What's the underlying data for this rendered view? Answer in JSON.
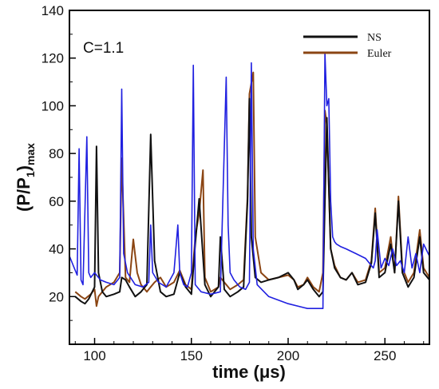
{
  "chart_data": {
    "type": "line",
    "xlabel": "time (μs)",
    "ylabel_main": "(P/P",
    "ylabel_sub1": "1",
    "ylabel_close": ")",
    "ylabel_sub2": "max",
    "annotation": "C=1.1",
    "xlim": [
      87,
      273
    ],
    "ylim": [
      0,
      140
    ],
    "xticks": [
      100,
      150,
      200,
      250
    ],
    "yticks": [
      20,
      40,
      60,
      80,
      100,
      120,
      140
    ],
    "grid": false,
    "legend_position": "top-right",
    "series": [
      {
        "name": "NS",
        "color": "#111111",
        "x": [
          90,
          93,
          95,
          97,
          100,
          101,
          102,
          104,
          106,
          110,
          113,
          114,
          116,
          118,
          121,
          124,
          127,
          129,
          131,
          134,
          137,
          141,
          144,
          147,
          150,
          152,
          154,
          157,
          160,
          164,
          165,
          167,
          170,
          174,
          177,
          179,
          180,
          181,
          183,
          186,
          190,
          195,
          200,
          203,
          205,
          208,
          210,
          213,
          216,
          218,
          219,
          220,
          222,
          224,
          227,
          230,
          233,
          236,
          240,
          243,
          245,
          247,
          250,
          253,
          255,
          257,
          259,
          262,
          265,
          268,
          270,
          273
        ],
        "values": [
          20,
          18,
          17,
          19,
          24,
          83,
          30,
          22,
          20,
          21,
          22,
          28,
          27,
          24,
          20,
          22,
          25,
          88,
          35,
          22,
          20,
          21,
          30,
          24,
          21,
          42,
          61,
          25,
          20,
          24,
          45,
          23,
          20,
          22,
          24,
          60,
          103,
          45,
          28,
          26,
          27,
          28,
          30,
          27,
          23,
          25,
          27,
          23,
          20,
          22,
          60,
          95,
          40,
          32,
          28,
          27,
          30,
          25,
          26,
          34,
          55,
          28,
          30,
          42,
          30,
          60,
          30,
          24,
          28,
          45,
          30,
          27
        ]
      },
      {
        "name": "Euler",
        "color": "#8b4513",
        "x": [
          90,
          93,
          95,
          98,
          100,
          101,
          102,
          104,
          106,
          110,
          113,
          114,
          116,
          118,
          120,
          122,
          124,
          127,
          129,
          131,
          134,
          137,
          141,
          144,
          147,
          150,
          152,
          154,
          156,
          157,
          160,
          164,
          165,
          167,
          170,
          174,
          177,
          179,
          180,
          182,
          183,
          186,
          190,
          195,
          200,
          203,
          205,
          208,
          210,
          213,
          216,
          218,
          219,
          220,
          222,
          224,
          227,
          230,
          233,
          236,
          240,
          243,
          245,
          247,
          250,
          253,
          255,
          257,
          259,
          262,
          265,
          268,
          270,
          273
        ],
        "values": [
          22,
          20,
          19,
          21,
          23,
          16,
          20,
          22,
          24,
          26,
          30,
          78,
          28,
          26,
          44,
          30,
          25,
          22,
          24,
          26,
          28,
          24,
          26,
          31,
          25,
          23,
          45,
          55,
          73,
          28,
          22,
          24,
          28,
          26,
          23,
          25,
          27,
          62,
          105,
          114,
          45,
          30,
          27,
          28,
          29,
          27,
          24,
          25,
          28,
          24,
          22,
          30,
          98,
          92,
          40,
          33,
          28,
          27,
          30,
          26,
          27,
          35,
          57,
          30,
          32,
          45,
          30,
          62,
          32,
          26,
          30,
          48,
          32,
          28
        ]
      },
      {
        "name": "",
        "color": "#2020e0",
        "x": [
          87,
          89,
          91,
          92,
          93,
          94,
          96,
          97,
          98,
          100,
          103,
          106,
          110,
          113,
          114,
          115,
          117,
          121,
          125,
          128,
          129,
          130,
          133,
          137,
          141,
          143,
          144,
          146,
          148,
          150,
          151,
          152,
          155,
          160,
          165,
          168,
          169,
          170,
          172,
          175,
          178,
          180,
          181,
          182,
          184,
          190,
          200,
          210,
          216,
          217,
          218,
          219,
          220,
          221,
          222,
          223,
          224,
          225,
          227,
          230,
          235,
          240,
          244,
          245,
          246,
          248,
          250,
          252,
          254,
          256,
          258,
          260,
          262,
          264,
          266,
          268,
          270,
          273
        ],
        "values": [
          37,
          33,
          29,
          82,
          27,
          25,
          87,
          30,
          28,
          30,
          27,
          26,
          25,
          28,
          107,
          38,
          30,
          25,
          24,
          26,
          50,
          30,
          26,
          24,
          30,
          50,
          30,
          25,
          24,
          30,
          117,
          25,
          22,
          21,
          22,
          112,
          50,
          30,
          27,
          24,
          23,
          26,
          118,
          40,
          25,
          20,
          17,
          15,
          15,
          15,
          15,
          122,
          100,
          103,
          60,
          45,
          43,
          42,
          41,
          40,
          38,
          36,
          32,
          35,
          48,
          32,
          36,
          33,
          40,
          33,
          35,
          30,
          45,
          32,
          38,
          30,
          42,
          37
        ]
      }
    ]
  }
}
